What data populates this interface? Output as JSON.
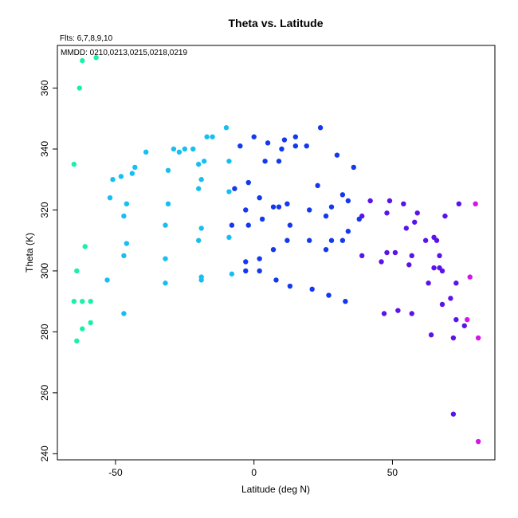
{
  "chart_data": {
    "type": "scatter",
    "title": "Theta vs. Latitude",
    "annotation_left": "Flts: 6,7,8,9,10",
    "annotation_inside": "MMDD: 0210,0213,0215,0218,0219",
    "xlabel": "Latitude (deg N)",
    "ylabel": "Theta (K)",
    "xlim": [
      -71,
      87
    ],
    "ylim": [
      238,
      374
    ],
    "x_ticks": [
      -50,
      0,
      50
    ],
    "y_ticks": [
      240,
      260,
      280,
      300,
      320,
      340,
      360
    ],
    "grid": false,
    "points": [
      {
        "x": -62,
        "y": 369,
        "color": "#19f0a8"
      },
      {
        "x": -57,
        "y": 370,
        "color": "#19f0a8"
      },
      {
        "x": -63,
        "y": 360,
        "color": "#19f0a8"
      },
      {
        "x": -65,
        "y": 335,
        "color": "#19f0a8"
      },
      {
        "x": -61,
        "y": 308,
        "color": "#19f0a8"
      },
      {
        "x": -64,
        "y": 300,
        "color": "#19f0a8"
      },
      {
        "x": -59,
        "y": 290,
        "color": "#19f0a8"
      },
      {
        "x": -62,
        "y": 290,
        "color": "#19f0a8"
      },
      {
        "x": -65,
        "y": 290,
        "color": "#19f0a8"
      },
      {
        "x": -59,
        "y": 283,
        "color": "#19f0a8"
      },
      {
        "x": -62,
        "y": 281,
        "color": "#19f0a8"
      },
      {
        "x": -64,
        "y": 277,
        "color": "#19f0a8"
      },
      {
        "x": -53,
        "y": 297,
        "color": "#16bff2"
      },
      {
        "x": -51,
        "y": 330,
        "color": "#16bff2"
      },
      {
        "x": -48,
        "y": 331,
        "color": "#16bff2"
      },
      {
        "x": -52,
        "y": 324,
        "color": "#16bff2"
      },
      {
        "x": -46,
        "y": 322,
        "color": "#16bff2"
      },
      {
        "x": -47,
        "y": 318,
        "color": "#16bff2"
      },
      {
        "x": -46,
        "y": 309,
        "color": "#16bff2"
      },
      {
        "x": -47,
        "y": 305,
        "color": "#16bff2"
      },
      {
        "x": -47,
        "y": 286,
        "color": "#16bff2"
      },
      {
        "x": -44,
        "y": 332,
        "color": "#16bff2"
      },
      {
        "x": -43,
        "y": 334,
        "color": "#16bff2"
      },
      {
        "x": -39,
        "y": 339,
        "color": "#16bff2"
      },
      {
        "x": -31,
        "y": 333,
        "color": "#16bff2"
      },
      {
        "x": -31,
        "y": 322,
        "color": "#16bff2"
      },
      {
        "x": -32,
        "y": 315,
        "color": "#16bff2"
      },
      {
        "x": -32,
        "y": 304,
        "color": "#16bff2"
      },
      {
        "x": -32,
        "y": 296,
        "color": "#16bff2"
      },
      {
        "x": -29,
        "y": 340,
        "color": "#16bff2"
      },
      {
        "x": -27,
        "y": 339,
        "color": "#16bff2"
      },
      {
        "x": -25,
        "y": 340,
        "color": "#16bff2"
      },
      {
        "x": -22,
        "y": 340,
        "color": "#16bff2"
      },
      {
        "x": -20,
        "y": 335,
        "color": "#16bff2"
      },
      {
        "x": -18,
        "y": 336,
        "color": "#16bff2"
      },
      {
        "x": -19,
        "y": 330,
        "color": "#16bff2"
      },
      {
        "x": -20,
        "y": 327,
        "color": "#16bff2"
      },
      {
        "x": -19,
        "y": 314,
        "color": "#16bff2"
      },
      {
        "x": -20,
        "y": 310,
        "color": "#16bff2"
      },
      {
        "x": -19,
        "y": 298,
        "color": "#16bff2"
      },
      {
        "x": -19,
        "y": 297,
        "color": "#16bff2"
      },
      {
        "x": -17,
        "y": 344,
        "color": "#16bff2"
      },
      {
        "x": -15,
        "y": 344,
        "color": "#16bff2"
      },
      {
        "x": -10,
        "y": 347,
        "color": "#16bff2"
      },
      {
        "x": -9,
        "y": 336,
        "color": "#16bff2"
      },
      {
        "x": -9,
        "y": 326,
        "color": "#16bff2"
      },
      {
        "x": -9,
        "y": 311,
        "color": "#16bff2"
      },
      {
        "x": -8,
        "y": 299,
        "color": "#16bff2"
      },
      {
        "x": -7,
        "y": 327,
        "color": "#1438ee"
      },
      {
        "x": -8,
        "y": 315,
        "color": "#1438ee"
      },
      {
        "x": -5,
        "y": 341,
        "color": "#1438ee"
      },
      {
        "x": 0,
        "y": 344,
        "color": "#1438ee"
      },
      {
        "x": -2,
        "y": 329,
        "color": "#1438ee"
      },
      {
        "x": 2,
        "y": 324,
        "color": "#1438ee"
      },
      {
        "x": -3,
        "y": 320,
        "color": "#1438ee"
      },
      {
        "x": -2,
        "y": 315,
        "color": "#1438ee"
      },
      {
        "x": 3,
        "y": 317,
        "color": "#1438ee"
      },
      {
        "x": -3,
        "y": 303,
        "color": "#1438ee"
      },
      {
        "x": -3,
        "y": 300,
        "color": "#1438ee"
      },
      {
        "x": 2,
        "y": 304,
        "color": "#1438ee"
      },
      {
        "x": 2,
        "y": 300,
        "color": "#1438ee"
      },
      {
        "x": 4,
        "y": 336,
        "color": "#1438ee"
      },
      {
        "x": 5,
        "y": 342,
        "color": "#1438ee"
      },
      {
        "x": 7,
        "y": 321,
        "color": "#1438ee"
      },
      {
        "x": 7,
        "y": 307,
        "color": "#1438ee"
      },
      {
        "x": 8,
        "y": 297,
        "color": "#1438ee"
      },
      {
        "x": 9,
        "y": 321,
        "color": "#1438ee"
      },
      {
        "x": 9,
        "y": 336,
        "color": "#1438ee"
      },
      {
        "x": 10,
        "y": 340,
        "color": "#1438ee"
      },
      {
        "x": 11,
        "y": 343,
        "color": "#1438ee"
      },
      {
        "x": 12,
        "y": 322,
        "color": "#1438ee"
      },
      {
        "x": 12,
        "y": 310,
        "color": "#1438ee"
      },
      {
        "x": 13,
        "y": 315,
        "color": "#1438ee"
      },
      {
        "x": 13,
        "y": 295,
        "color": "#1438ee"
      },
      {
        "x": 15,
        "y": 344,
        "color": "#1438ee"
      },
      {
        "x": 15,
        "y": 341,
        "color": "#1438ee"
      },
      {
        "x": 19,
        "y": 341,
        "color": "#1438ee"
      },
      {
        "x": 20,
        "y": 320,
        "color": "#1438ee"
      },
      {
        "x": 20,
        "y": 310,
        "color": "#1438ee"
      },
      {
        "x": 21,
        "y": 294,
        "color": "#1438ee"
      },
      {
        "x": 23,
        "y": 328,
        "color": "#1438ee"
      },
      {
        "x": 24,
        "y": 347,
        "color": "#1438ee"
      },
      {
        "x": 26,
        "y": 318,
        "color": "#1438ee"
      },
      {
        "x": 26,
        "y": 307,
        "color": "#1438ee"
      },
      {
        "x": 27,
        "y": 292,
        "color": "#1438ee"
      },
      {
        "x": 28,
        "y": 310,
        "color": "#1438ee"
      },
      {
        "x": 28,
        "y": 321,
        "color": "#1438ee"
      },
      {
        "x": 30,
        "y": 338,
        "color": "#1438ee"
      },
      {
        "x": 32,
        "y": 325,
        "color": "#1438ee"
      },
      {
        "x": 32,
        "y": 310,
        "color": "#1438ee"
      },
      {
        "x": 33,
        "y": 290,
        "color": "#1438ee"
      },
      {
        "x": 34,
        "y": 323,
        "color": "#1438ee"
      },
      {
        "x": 34,
        "y": 313,
        "color": "#1438ee"
      },
      {
        "x": 36,
        "y": 334,
        "color": "#1438ee"
      },
      {
        "x": 38,
        "y": 317,
        "color": "#1438ee"
      },
      {
        "x": 39,
        "y": 318,
        "color": "#5a14ea"
      },
      {
        "x": 39,
        "y": 305,
        "color": "#5a14ea"
      },
      {
        "x": 42,
        "y": 323,
        "color": "#5a14ea"
      },
      {
        "x": 46,
        "y": 303,
        "color": "#5a14ea"
      },
      {
        "x": 47,
        "y": 286,
        "color": "#5a14ea"
      },
      {
        "x": 48,
        "y": 306,
        "color": "#5a14ea"
      },
      {
        "x": 48,
        "y": 319,
        "color": "#5a14ea"
      },
      {
        "x": 49,
        "y": 323,
        "color": "#5a14ea"
      },
      {
        "x": 51,
        "y": 306,
        "color": "#5a14ea"
      },
      {
        "x": 52,
        "y": 287,
        "color": "#5a14ea"
      },
      {
        "x": 54,
        "y": 322,
        "color": "#5a14ea"
      },
      {
        "x": 55,
        "y": 314,
        "color": "#5a14ea"
      },
      {
        "x": 56,
        "y": 302,
        "color": "#5a14ea"
      },
      {
        "x": 57,
        "y": 286,
        "color": "#5a14ea"
      },
      {
        "x": 57,
        "y": 305,
        "color": "#5a14ea"
      },
      {
        "x": 58,
        "y": 316,
        "color": "#5a14ea"
      },
      {
        "x": 59,
        "y": 319,
        "color": "#5a14ea"
      },
      {
        "x": 62,
        "y": 310,
        "color": "#5a14ea"
      },
      {
        "x": 63,
        "y": 296,
        "color": "#5a14ea"
      },
      {
        "x": 64,
        "y": 279,
        "color": "#5a14ea"
      },
      {
        "x": 65,
        "y": 301,
        "color": "#5a14ea"
      },
      {
        "x": 65,
        "y": 311,
        "color": "#5a14ea"
      },
      {
        "x": 66,
        "y": 310,
        "color": "#5a14ea"
      },
      {
        "x": 67,
        "y": 305,
        "color": "#5a14ea"
      },
      {
        "x": 67,
        "y": 301,
        "color": "#5a14ea"
      },
      {
        "x": 68,
        "y": 300,
        "color": "#5a14ea"
      },
      {
        "x": 68,
        "y": 289,
        "color": "#5a14ea"
      },
      {
        "x": 69,
        "y": 318,
        "color": "#5a14ea"
      },
      {
        "x": 71,
        "y": 291,
        "color": "#5a14ea"
      },
      {
        "x": 72,
        "y": 278,
        "color": "#5a14ea"
      },
      {
        "x": 72,
        "y": 253,
        "color": "#5a14ea"
      },
      {
        "x": 73,
        "y": 284,
        "color": "#5a14ea"
      },
      {
        "x": 73,
        "y": 296,
        "color": "#5a14ea"
      },
      {
        "x": 74,
        "y": 322,
        "color": "#5a14ea"
      },
      {
        "x": 76,
        "y": 282,
        "color": "#5a14ea"
      },
      {
        "x": 77,
        "y": 284,
        "color": "#d414ea"
      },
      {
        "x": 78,
        "y": 298,
        "color": "#d414ea"
      },
      {
        "x": 80,
        "y": 322,
        "color": "#d414ea"
      },
      {
        "x": 81,
        "y": 278,
        "color": "#d414ea"
      },
      {
        "x": 81,
        "y": 244,
        "color": "#d414ea"
      }
    ]
  }
}
